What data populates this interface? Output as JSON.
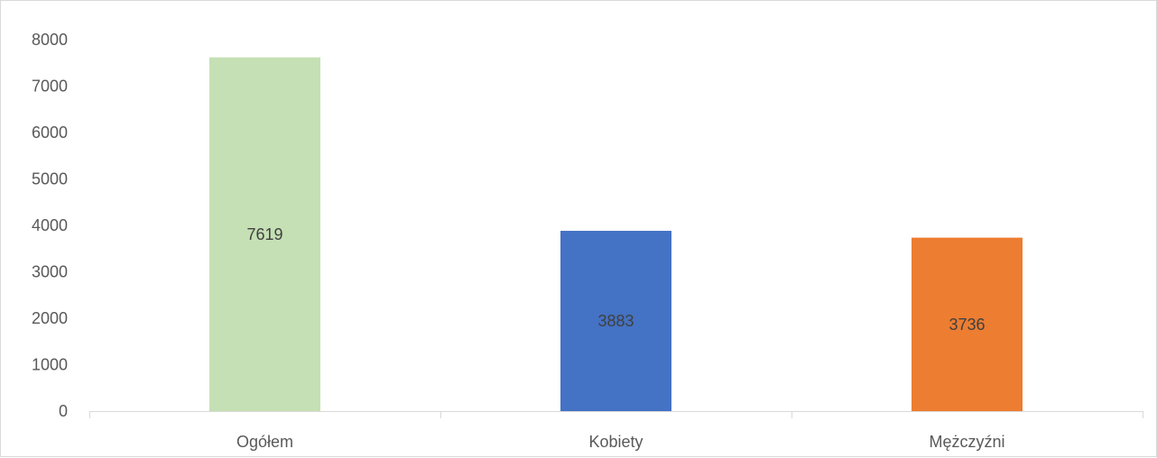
{
  "chart_data": {
    "type": "bar",
    "categories": [
      "Ogółem",
      "Kobiety",
      "Mężczyźni"
    ],
    "values": [
      7619,
      3883,
      3736
    ],
    "data_labels": [
      "7619",
      "3883",
      "3736"
    ],
    "colors": [
      "#c5e0b4",
      "#4472c4",
      "#ed7d31"
    ],
    "yticks": [
      "0",
      "1000",
      "2000",
      "3000",
      "4000",
      "5000",
      "6000",
      "7000",
      "8000"
    ],
    "ylim": [
      0,
      8000
    ],
    "grid": false,
    "legend": "none"
  }
}
